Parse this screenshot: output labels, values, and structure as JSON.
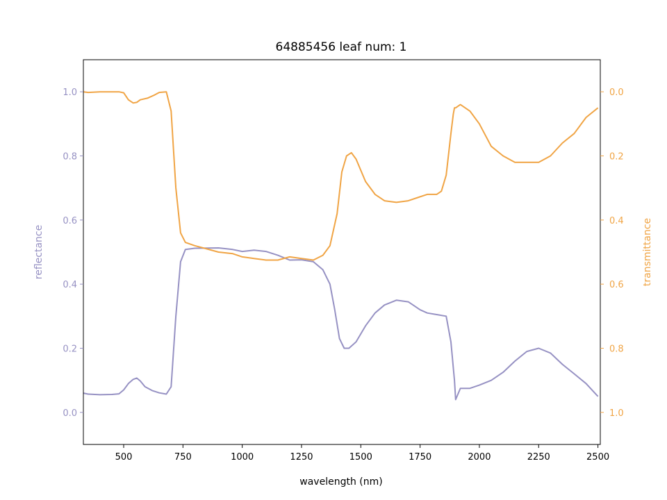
{
  "chart_data": {
    "type": "line",
    "title": "64885456 leaf num: 1",
    "xlabel": "wavelength (nm)",
    "ylabel": "reflectance",
    "y2label": "transmittance",
    "xlim": [
      330,
      2510
    ],
    "ylim": [
      -0.1,
      1.1
    ],
    "y2lim": [
      1.1,
      -0.1
    ],
    "y2_inverted": true,
    "x_ticks": [
      500,
      750,
      1000,
      1250,
      1500,
      1750,
      2000,
      2250,
      2500
    ],
    "y_ticks": [
      0.0,
      0.2,
      0.4,
      0.6,
      0.8,
      1.0
    ],
    "y2_ticks": [
      0.0,
      0.2,
      0.4,
      0.6,
      0.8,
      1.0
    ],
    "grid": false,
    "colors": {
      "reflectance": "#9691c3",
      "transmittance": "#f0a444",
      "axis": "#000000"
    },
    "series": [
      {
        "name": "reflectance",
        "axis": "left",
        "x": [
          330,
          350,
          400,
          450,
          480,
          500,
          520,
          540,
          555,
          570,
          590,
          620,
          650,
          680,
          700,
          720,
          740,
          760,
          800,
          900,
          960,
          1000,
          1050,
          1100,
          1150,
          1200,
          1250,
          1300,
          1340,
          1370,
          1390,
          1410,
          1430,
          1450,
          1480,
          1520,
          1560,
          1600,
          1650,
          1700,
          1750,
          1780,
          1820,
          1860,
          1880,
          1895,
          1900,
          1920,
          1960,
          2000,
          2050,
          2100,
          2150,
          2200,
          2250,
          2300,
          2350,
          2400,
          2450,
          2500
        ],
        "y": [
          0.06,
          0.057,
          0.055,
          0.056,
          0.058,
          0.07,
          0.09,
          0.103,
          0.107,
          0.098,
          0.08,
          0.068,
          0.061,
          0.057,
          0.08,
          0.3,
          0.47,
          0.508,
          0.512,
          0.513,
          0.508,
          0.502,
          0.506,
          0.502,
          0.49,
          0.475,
          0.476,
          0.47,
          0.445,
          0.4,
          0.32,
          0.23,
          0.2,
          0.2,
          0.22,
          0.27,
          0.31,
          0.335,
          0.35,
          0.345,
          0.32,
          0.31,
          0.305,
          0.3,
          0.22,
          0.1,
          0.04,
          0.075,
          0.075,
          0.085,
          0.1,
          0.125,
          0.16,
          0.19,
          0.2,
          0.185,
          0.15,
          0.12,
          0.09,
          0.05
        ]
      },
      {
        "name": "transmittance",
        "axis": "right",
        "x": [
          330,
          350,
          400,
          450,
          480,
          500,
          520,
          540,
          555,
          570,
          600,
          630,
          650,
          680,
          700,
          720,
          740,
          760,
          800,
          850,
          900,
          960,
          1000,
          1050,
          1100,
          1150,
          1200,
          1250,
          1300,
          1340,
          1370,
          1400,
          1420,
          1440,
          1460,
          1480,
          1520,
          1560,
          1600,
          1650,
          1700,
          1740,
          1780,
          1820,
          1840,
          1860,
          1880,
          1890,
          1895,
          1900,
          1920,
          1960,
          2000,
          2050,
          2100,
          2150,
          2200,
          2250,
          2300,
          2350,
          2400,
          2450,
          2500
        ],
        "y": [
          0.0,
          0.002,
          0.0,
          0.0,
          0.0,
          0.003,
          0.025,
          0.035,
          0.033,
          0.025,
          0.02,
          0.01,
          0.002,
          0.0,
          0.06,
          0.3,
          0.44,
          0.47,
          0.48,
          0.49,
          0.5,
          0.505,
          0.515,
          0.52,
          0.525,
          0.525,
          0.515,
          0.52,
          0.525,
          0.51,
          0.48,
          0.38,
          0.25,
          0.2,
          0.19,
          0.21,
          0.28,
          0.32,
          0.34,
          0.345,
          0.34,
          0.33,
          0.32,
          0.32,
          0.31,
          0.26,
          0.13,
          0.07,
          0.05,
          0.05,
          0.04,
          0.06,
          0.1,
          0.17,
          0.2,
          0.22,
          0.22,
          0.22,
          0.2,
          0.16,
          0.13,
          0.08,
          0.05
        ]
      }
    ]
  }
}
